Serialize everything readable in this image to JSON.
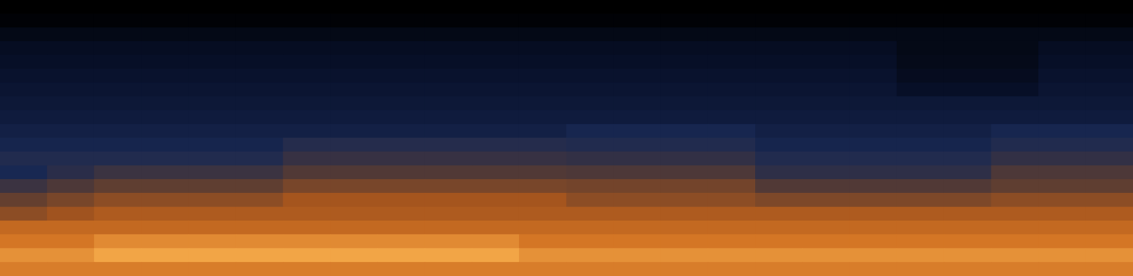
{
  "chart_data": {
    "type": "heatmap",
    "tick_labels": false,
    "zlim": [
      0,
      100
    ],
    "cells": [
      [
        0,
        0,
        0,
        0,
        0,
        0,
        0,
        0,
        0,
        0,
        0,
        0,
        0,
        0,
        0,
        0,
        0,
        0,
        0,
        0,
        0,
        0,
        0,
        0
      ],
      [
        2,
        2,
        2,
        2,
        2,
        2,
        2,
        2,
        2,
        2,
        2,
        2,
        2,
        2,
        2,
        2,
        2,
        2,
        2,
        2,
        2,
        2,
        2,
        2
      ],
      [
        8,
        8,
        8,
        8,
        8,
        8,
        8,
        8,
        8,
        8,
        8,
        8,
        8,
        8,
        8,
        8,
        8,
        8,
        8,
        8,
        8,
        8,
        8,
        8
      ],
      [
        12,
        12,
        12,
        12,
        12,
        12,
        12,
        12,
        12,
        12,
        12,
        12,
        12,
        12,
        12,
        12,
        12,
        12,
        12,
        8,
        8,
        8,
        12,
        12
      ],
      [
        14,
        14,
        14,
        14,
        14,
        14,
        14,
        14,
        14,
        14,
        14,
        14,
        14,
        14,
        14,
        14,
        14,
        14,
        14,
        9,
        9,
        9,
        14,
        14
      ],
      [
        16,
        16,
        16,
        16,
        16,
        16,
        16,
        16,
        16,
        16,
        16,
        16,
        16,
        16,
        16,
        16,
        16,
        16,
        16,
        11,
        11,
        11,
        16,
        16
      ],
      [
        18,
        18,
        18,
        18,
        18,
        18,
        18,
        18,
        18,
        18,
        18,
        18,
        18,
        18,
        18,
        18,
        18,
        18,
        18,
        14,
        14,
        14,
        18,
        18
      ],
      [
        20,
        20,
        20,
        20,
        20,
        20,
        20,
        20,
        20,
        20,
        20,
        20,
        20,
        20,
        20,
        20,
        20,
        20,
        20,
        20,
        20,
        20,
        20,
        20
      ],
      [
        22,
        22,
        22,
        22,
        22,
        22,
        22,
        22,
        22,
        22,
        22,
        22,
        22,
        22,
        22,
        22,
        22,
        22,
        22,
        22,
        22,
        22,
        22,
        22
      ],
      [
        25,
        25,
        25,
        25,
        25,
        25,
        25,
        25,
        25,
        25,
        25,
        25,
        29,
        29,
        29,
        29,
        25,
        25,
        25,
        25,
        25,
        29,
        29,
        29
      ],
      [
        28,
        28,
        28,
        28,
        28,
        28,
        33,
        33,
        33,
        33,
        33,
        33,
        32,
        32,
        32,
        32,
        28,
        28,
        28,
        28,
        28,
        32,
        32,
        32
      ],
      [
        32,
        32,
        32,
        32,
        32,
        32,
        37,
        37,
        37,
        37,
        37,
        37,
        36,
        36,
        36,
        36,
        32,
        32,
        32,
        32,
        32,
        36,
        36,
        36
      ],
      [
        30,
        34,
        38,
        38,
        38,
        38,
        43,
        43,
        43,
        43,
        43,
        43,
        42,
        42,
        42,
        42,
        35,
        35,
        35,
        35,
        35,
        42,
        42,
        42
      ],
      [
        38,
        42,
        46,
        46,
        46,
        46,
        51,
        51,
        51,
        51,
        51,
        51,
        50,
        50,
        50,
        50,
        43,
        43,
        43,
        43,
        43,
        46,
        46,
        46
      ],
      [
        47,
        51,
        55,
        55,
        55,
        55,
        60,
        60,
        60,
        60,
        60,
        60,
        55,
        55,
        55,
        55,
        52,
        52,
        52,
        52,
        52,
        55,
        55,
        55
      ],
      [
        55,
        59,
        63,
        63,
        63,
        63,
        63,
        63,
        63,
        63,
        63,
        63,
        63,
        63,
        63,
        63,
        63,
        63,
        63,
        63,
        63,
        63,
        63,
        63
      ],
      [
        70,
        70,
        70,
        70,
        70,
        70,
        70,
        70,
        70,
        70,
        70,
        70,
        70,
        70,
        70,
        70,
        70,
        70,
        70,
        70,
        70,
        70,
        70,
        70
      ],
      [
        76,
        76,
        82,
        82,
        82,
        82,
        82,
        82,
        82,
        82,
        82,
        76,
        76,
        76,
        76,
        76,
        76,
        76,
        76,
        76,
        76,
        76,
        76,
        76
      ],
      [
        84,
        84,
        90,
        90,
        90,
        90,
        90,
        90,
        90,
        90,
        90,
        84,
        84,
        84,
        84,
        84,
        84,
        84,
        84,
        84,
        84,
        84,
        84,
        84
      ],
      [
        78,
        78,
        78,
        78,
        78,
        78,
        78,
        78,
        78,
        78,
        78,
        78,
        78,
        78,
        78,
        78,
        78,
        78,
        78,
        78,
        78,
        78,
        78,
        78
      ]
    ]
  }
}
